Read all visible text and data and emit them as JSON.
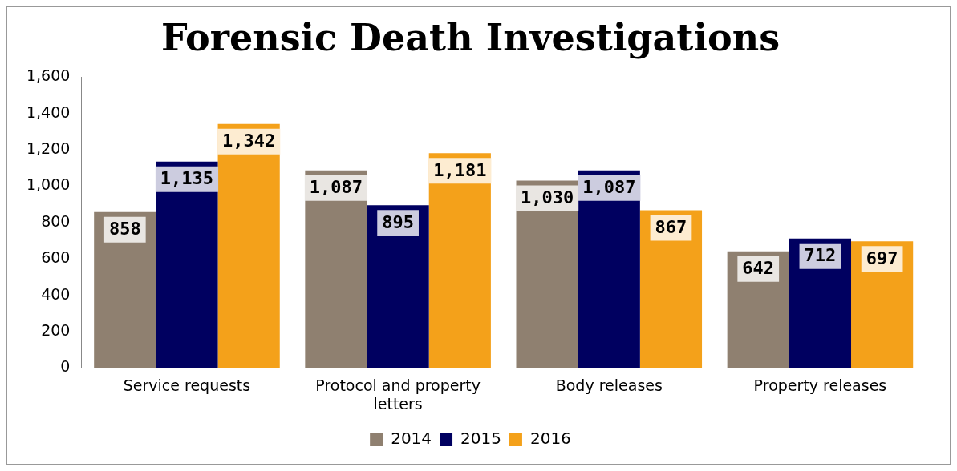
{
  "chart_data": {
    "type": "bar",
    "title": "Forensic Death Investigations",
    "categories": [
      "Service requests",
      "Protocol and property letters",
      "Body releases",
      "Property releases"
    ],
    "series": [
      {
        "name": "2014",
        "color": "#8f8070",
        "values": [
          858,
          1087,
          1030,
          642
        ],
        "value_labels": [
          "858",
          "1,087",
          "1,030",
          "642"
        ]
      },
      {
        "name": "2015",
        "color": "#000060",
        "values": [
          1135,
          895,
          1087,
          712
        ],
        "value_labels": [
          "1,135",
          "895",
          "1,087",
          "712"
        ]
      },
      {
        "name": "2016",
        "color": "#f4a11a",
        "values": [
          1342,
          1181,
          867,
          697
        ],
        "value_labels": [
          "1,342",
          "1,181",
          "867",
          "697"
        ]
      }
    ],
    "ylim": [
      0,
      1600
    ],
    "yticks": [
      {
        "value": 0,
        "label": "0"
      },
      {
        "value": 200,
        "label": "200"
      },
      {
        "value": 400,
        "label": "400"
      },
      {
        "value": 600,
        "label": "600"
      },
      {
        "value": 800,
        "label": "800"
      },
      {
        "value": 1000,
        "label": "1,000"
      },
      {
        "value": 1200,
        "label": "1,200"
      },
      {
        "value": 1400,
        "label": "1,400"
      },
      {
        "value": 1600,
        "label": "1,600"
      }
    ],
    "grid": false,
    "legend": "bottom"
  }
}
